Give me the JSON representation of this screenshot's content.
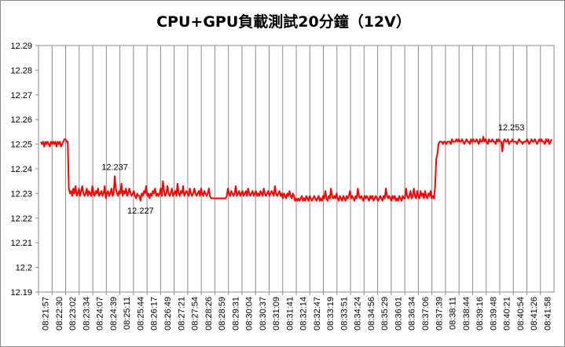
{
  "chart_data": {
    "type": "line",
    "title": "CPU+GPU負載測試20分鐘（12V）",
    "xlabel": "",
    "ylabel": "",
    "ylim": [
      12.19,
      12.29
    ],
    "yticks": [
      "12.29",
      "12.28",
      "12.27",
      "12.26",
      "12.25",
      "12.24",
      "12.23",
      "12.22",
      "12.21",
      "12.2",
      "12.19"
    ],
    "x_tick_labels": [
      "08:21:57",
      "08:22:30",
      "08:23:02",
      "08:23:34",
      "08:24:07",
      "08:24:39",
      "08:25:11",
      "08:25:44",
      "08:26:17",
      "08:26:49",
      "08:27:21",
      "08:27:54",
      "08:28:26",
      "08:28:59",
      "08:29:31",
      "08:30:04",
      "08:30:37",
      "08:31:09",
      "08:31:41",
      "08:32:14",
      "08:32:47",
      "08:33:19",
      "08:33:51",
      "08:34:24",
      "08:34:56",
      "08:35:29",
      "08:36:01",
      "08:36:34",
      "08:37:06",
      "08:37:39",
      "08:38:11",
      "08:38:44",
      "08:39:16",
      "08:39:48",
      "08:40:21",
      "08:40:54",
      "08:41:26",
      "08:41:58"
    ],
    "grid": "vertical",
    "series": [
      {
        "color": "#ff0000",
        "values": [
          12.251,
          12.25,
          12.251,
          12.249,
          12.251,
          12.25,
          12.251,
          12.25,
          12.249,
          12.251,
          12.25,
          12.251,
          12.25,
          12.251,
          12.249,
          12.251,
          12.25,
          12.251,
          12.249,
          12.25,
          12.251,
          12.252,
          12.252,
          12.251,
          12.251,
          12.232,
          12.23,
          12.231,
          12.229,
          12.232,
          12.23,
          12.233,
          12.229,
          12.23,
          12.232,
          12.229,
          12.231,
          12.233,
          12.23,
          12.229,
          12.23,
          12.232,
          12.229,
          12.231,
          12.23,
          12.229,
          12.233,
          12.23,
          12.229,
          12.231,
          12.23,
          12.232,
          12.229,
          12.23,
          12.231,
          12.229,
          12.23,
          12.233,
          12.228,
          12.23,
          12.231,
          12.229,
          12.23,
          12.232,
          12.229,
          12.23,
          12.237,
          12.232,
          12.23,
          12.229,
          12.231,
          12.23,
          12.234,
          12.229,
          12.231,
          12.23,
          12.232,
          12.229,
          12.23,
          12.232,
          12.23,
          12.229,
          12.23,
          12.231,
          12.229,
          12.228,
          12.23,
          12.229,
          12.229,
          12.227,
          12.23,
          12.229,
          12.231,
          12.23,
          12.233,
          12.229,
          12.23,
          12.228,
          12.23,
          12.229,
          12.231,
          12.23,
          12.232,
          12.229,
          12.23,
          12.229,
          12.23,
          12.232,
          12.229,
          12.235,
          12.231,
          12.229,
          12.23,
          12.233,
          12.23,
          12.229,
          12.23,
          12.232,
          12.229,
          12.23,
          12.231,
          12.229,
          12.234,
          12.23,
          12.229,
          12.231,
          12.23,
          12.233,
          12.229,
          12.23,
          12.231,
          12.23,
          12.229,
          12.232,
          12.23,
          12.229,
          12.23,
          12.232,
          12.23,
          12.229,
          12.23,
          12.231,
          12.229,
          12.232,
          12.23,
          12.229,
          12.231,
          12.23,
          12.229,
          12.23,
          12.232,
          12.229,
          12.228,
          12.228,
          12.228,
          12.228,
          12.228,
          12.228,
          12.228,
          12.228,
          12.228,
          12.228,
          12.228,
          12.228,
          12.228,
          12.228,
          12.229,
          12.232,
          12.23,
          12.229,
          12.231,
          12.23,
          12.229,
          12.23,
          12.233,
          12.229,
          12.23,
          12.231,
          12.229,
          12.23,
          12.231,
          12.229,
          12.23,
          12.231,
          12.229,
          12.232,
          12.23,
          12.229,
          12.23,
          12.231,
          12.229,
          12.23,
          12.231,
          12.229,
          12.23,
          12.229,
          12.231,
          12.23,
          12.229,
          12.232,
          12.23,
          12.229,
          12.23,
          12.231,
          12.229,
          12.23,
          12.231,
          12.23,
          12.229,
          12.233,
          12.23,
          12.229,
          12.23,
          12.231,
          12.229,
          12.23,
          12.228,
          12.23,
          12.229,
          12.228,
          12.23,
          12.229,
          12.231,
          12.229,
          12.228,
          12.23,
          12.229,
          12.227,
          12.228,
          12.227,
          12.228,
          12.227,
          12.228,
          12.229,
          12.227,
          12.228,
          12.227,
          12.229,
          12.228,
          12.227,
          12.229,
          12.228,
          12.227,
          12.228,
          12.229,
          12.228,
          12.227,
          12.228,
          12.229,
          12.227,
          12.228,
          12.227,
          12.229,
          12.228,
          12.231,
          12.228,
          12.227,
          12.229,
          12.228,
          12.232,
          12.229,
          12.228,
          12.229,
          12.228,
          12.23,
          12.228,
          12.227,
          12.229,
          12.228,
          12.227,
          12.229,
          12.228,
          12.227,
          12.229,
          12.228,
          12.229,
          12.231,
          12.228,
          12.229,
          12.228,
          12.227,
          12.229,
          12.228,
          12.232,
          12.229,
          12.228,
          12.229,
          12.228,
          12.227,
          12.229,
          12.228,
          12.229,
          12.228,
          12.227,
          12.229,
          12.228,
          12.229,
          12.227,
          12.228,
          12.229,
          12.228,
          12.227,
          12.228,
          12.229,
          12.228,
          12.227,
          12.229,
          12.228,
          12.232,
          12.229,
          12.228,
          12.229,
          12.228,
          12.227,
          12.229,
          12.228,
          12.229,
          12.227,
          12.228,
          12.227,
          12.229,
          12.228,
          12.227,
          12.229,
          12.228,
          12.228,
          12.232,
          12.229,
          12.228,
          12.229,
          12.231,
          12.228,
          12.229,
          12.232,
          12.229,
          12.228,
          12.231,
          12.229,
          12.228,
          12.231,
          12.229,
          12.23,
          12.228,
          12.231,
          12.229,
          12.228,
          12.23,
          12.229,
          12.231,
          12.228,
          12.229,
          12.228,
          12.233,
          12.244,
          12.246,
          12.25,
          12.251,
          12.251,
          12.251,
          12.25,
          12.251,
          12.251,
          12.25,
          12.251,
          12.251,
          12.251,
          12.25,
          12.252,
          12.251,
          12.251,
          12.251,
          12.252,
          12.251,
          12.252,
          12.251,
          12.251,
          12.252,
          12.251,
          12.25,
          12.251,
          12.252,
          12.251,
          12.251,
          12.25,
          12.252,
          12.251,
          12.252,
          12.251,
          12.251,
          12.252,
          12.251,
          12.25,
          12.252,
          12.251,
          12.251,
          12.253,
          12.251,
          12.252,
          12.251,
          12.25,
          12.252,
          12.251,
          12.251,
          12.252,
          12.251,
          12.251,
          12.25,
          12.252,
          12.251,
          12.252,
          12.251,
          12.251,
          12.247,
          12.251,
          12.252,
          12.251,
          12.251,
          12.252,
          12.25,
          12.251,
          12.251,
          12.252,
          12.251,
          12.251,
          12.251,
          12.25,
          12.251,
          12.252,
          12.251,
          12.251,
          12.25,
          12.251,
          12.251,
          12.251,
          12.252,
          12.251,
          12.25,
          12.251,
          12.252,
          12.251,
          12.251,
          12.252,
          12.251,
          12.25,
          12.251,
          12.252,
          12.251,
          12.252,
          12.251,
          12.251,
          12.25,
          12.252,
          12.251,
          12.252,
          12.25,
          12.251,
          12.252
        ]
      }
    ],
    "annotations": [
      {
        "text": "12.237",
        "x_index": 66,
        "y": 12.237,
        "position": "above"
      },
      {
        "text": "12.227",
        "x_index": 89,
        "y": 12.227,
        "position": "below"
      },
      {
        "text": "12.253",
        "x_index": 420,
        "y": 12.253,
        "position": "above"
      }
    ]
  }
}
